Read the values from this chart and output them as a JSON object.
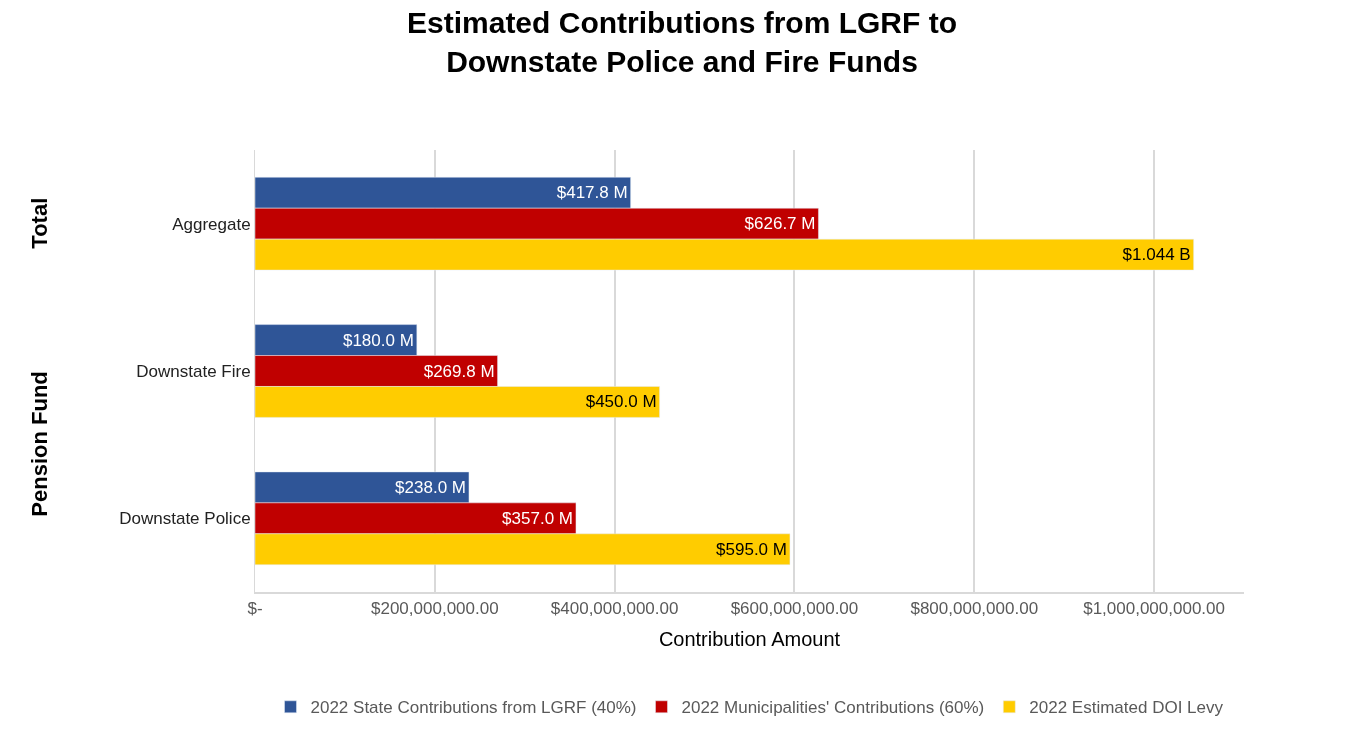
{
  "chart_data": {
    "type": "bar",
    "orientation": "horizontal",
    "title": "Estimated Contributions from LGRF to\nDownstate Police and Fire Funds",
    "xlabel": "Contribution Amount",
    "categories": [
      "Aggregate",
      "Downstate Fire",
      "Downstate Police"
    ],
    "annotations": [
      "Total",
      "Pension Fund"
    ],
    "series": [
      {
        "name": "2022 State Contributions from LGRF (40%)",
        "color": "#2f5597",
        "values": [
          417800000,
          180000000,
          238000000
        ],
        "value_labels": [
          "$417.8 M",
          "$180.0 M",
          "$238.0 M"
        ]
      },
      {
        "name": "2022 Municipalities' Contributions (60%)",
        "color": "#c00000",
        "values": [
          626700000,
          269800000,
          357000000
        ],
        "value_labels": [
          "$626.7 M",
          "$269.8 M",
          "$357.0 M"
        ]
      },
      {
        "name": "2022 Estimated DOI Levy",
        "color": "#ffcc00",
        "values": [
          1044000000,
          450000000,
          595000000
        ],
        "value_labels": [
          "$1.044 B",
          "$450.0 M",
          "$595.0 M"
        ]
      }
    ],
    "xlim": [
      0,
      1100000000
    ],
    "xticks": [
      {
        "value": 0,
        "label": "$-"
      },
      {
        "value": 200000000,
        "label": "$200,000,000.00"
      },
      {
        "value": 400000000,
        "label": "$400,000,000.00"
      },
      {
        "value": 600000000,
        "label": "$600,000,000.00"
      },
      {
        "value": 800000000,
        "label": "$800,000,000.00"
      },
      {
        "value": 1000000000,
        "label": "$1,000,000,000.00"
      }
    ],
    "grid": "x",
    "legend": "bottom"
  }
}
